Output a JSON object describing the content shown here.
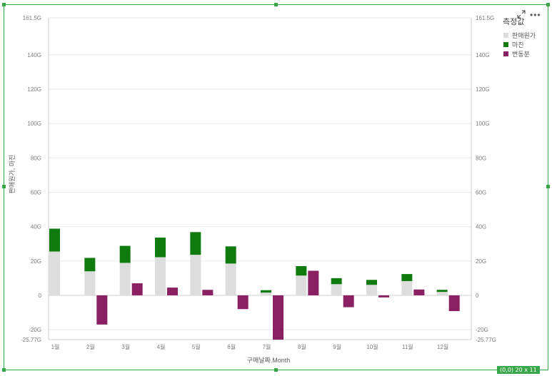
{
  "chart_data": {
    "type": "bar",
    "stacked_series": [
      "판매원가",
      "마진"
    ],
    "categories": [
      "1월",
      "2월",
      "3월",
      "4월",
      "5월",
      "6월",
      "7월",
      "8월",
      "9월",
      "10월",
      "11월",
      "12월"
    ],
    "series": [
      {
        "name": "판매원가",
        "color": "#dddddd",
        "values": [
          25.5,
          14.0,
          18.9,
          22.2,
          23.6,
          18.5,
          1.6,
          11.5,
          6.5,
          6.1,
          8.3,
          2.0
        ]
      },
      {
        "name": "마진",
        "color": "#0f7b0f",
        "values": [
          13.3,
          7.8,
          9.9,
          11.4,
          13.2,
          10.0,
          1.4,
          5.5,
          3.5,
          2.9,
          4.1,
          1.2
        ]
      },
      {
        "name": "변동분",
        "color": "#8a1f62",
        "values": [
          0,
          -17.0,
          7.0,
          4.5,
          3.2,
          -8.0,
          -25.8,
          14.3,
          -6.9,
          -1.2,
          3.4,
          -9.2
        ]
      }
    ],
    "y_ticks": [
      {
        "value": 161.5,
        "label": "161.5G"
      },
      {
        "value": 140,
        "label": "140G"
      },
      {
        "value": 120,
        "label": "120G"
      },
      {
        "value": 100,
        "label": "100G"
      },
      {
        "value": 80,
        "label": "80G"
      },
      {
        "value": 60,
        "label": "60G"
      },
      {
        "value": 40,
        "label": "40G"
      },
      {
        "value": 20,
        "label": "20G"
      },
      {
        "value": 0,
        "label": "0"
      },
      {
        "value": -20,
        "label": "-20G"
      },
      {
        "value": -25.77,
        "label": "-25.77G"
      }
    ],
    "ylim": [
      -25.77,
      161.5
    ],
    "xlabel": "구매날짜.Month",
    "ylabel": "판매원가, 마진",
    "legend_title": "측정값",
    "legend_position": "top-right",
    "grid": true
  },
  "ui": {
    "menu_label": "•••",
    "badge_label": "(0,0)  20 x 11"
  },
  "colors": {
    "selection": "#3aa64a",
    "grid": "#ebebeb",
    "axis": "#cccccc"
  }
}
